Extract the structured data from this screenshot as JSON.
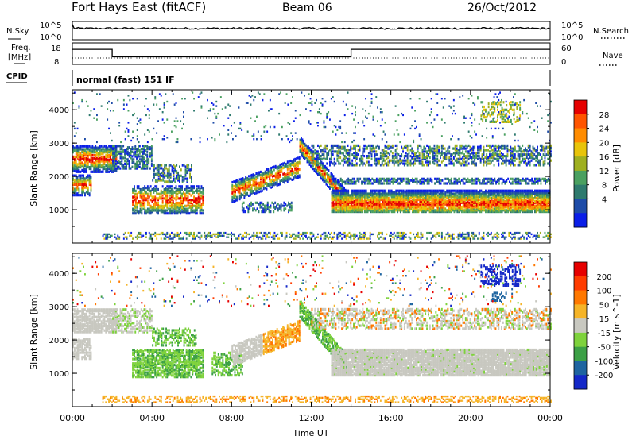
{
  "header": {
    "station": "Fort Hays East (fitACF)",
    "beam": "Beam 06",
    "date": "26/Oct/2012"
  },
  "panels": {
    "nsky_label": "N.Sky",
    "nsearch_label": "N.Search",
    "nsky_ticks": [
      "10^5",
      "10^0"
    ],
    "nsearch_ticks": [
      "10^5",
      "10^0"
    ],
    "freq_label_1": "Freq.",
    "freq_label_2": "[MHz]",
    "freq_ticks": [
      "18",
      "8"
    ],
    "nave_label": "Nave",
    "nave_ticks": [
      "60",
      "0"
    ],
    "cpid_label": "CPID",
    "cpid_text": "normal (fast) 151 IF"
  },
  "chart_data": [
    {
      "type": "line",
      "name": "N.Sky / N.Search",
      "ylim_log10": [
        0,
        5
      ],
      "series": [
        {
          "label": "N.Sky",
          "x_hours": [
            0,
            0.1,
            24
          ],
          "y_log10": [
            4.2,
            3.1,
            3.1
          ],
          "style": "solid"
        },
        {
          "label": "N.Search",
          "x_hours": [
            0,
            24
          ],
          "y_log10": [
            3.0,
            3.0
          ],
          "style": "dotted"
        }
      ]
    },
    {
      "type": "line",
      "name": "Freq / Nave",
      "series": [
        {
          "label": "Freq. [MHz]",
          "x_hours": [
            0,
            2,
            2,
            14,
            14,
            24
          ],
          "y": [
            15,
            15,
            11.5,
            11.5,
            15,
            15
          ],
          "style": "solid"
        },
        {
          "label": "Nave",
          "x_hours": [
            0,
            24
          ],
          "y": [
            0.5,
            0.5
          ],
          "style": "dotted"
        }
      ]
    },
    {
      "type": "heatmap",
      "name": "Power",
      "ylabel": "Slant Range [km]",
      "y_ticks": [
        "1000",
        "2000",
        "3000",
        "4000"
      ],
      "colorbar_label": "Power [dB]",
      "colorbar_ticks": [
        "28",
        "24",
        "20",
        "16",
        "12",
        "8",
        "4"
      ],
      "colors": [
        "#0a1ee8",
        "#1e4ca8",
        "#2e7a6e",
        "#4aa060",
        "#9fb020",
        "#e8c40a",
        "#ff8c00",
        "#ff5500",
        "#e60000"
      ]
    },
    {
      "type": "heatmap",
      "name": "Velocity",
      "ylabel": "Slant Range [km]",
      "y_ticks": [
        "1000",
        "2000",
        "3000",
        "4000"
      ],
      "colorbar_label": "Velocity [m s^-1]",
      "colorbar_ticks": [
        "200",
        "100",
        "50",
        "15",
        "-15",
        "-50",
        "-100",
        "-200"
      ],
      "colors": [
        "#1428c8",
        "#1e64a0",
        "#3ca046",
        "#7ed23c",
        "#c8c8c0",
        "#f5b428",
        "#ff7800",
        "#ff3c00",
        "#e60000"
      ]
    }
  ],
  "xaxis": {
    "title": "Time UT",
    "ticks": [
      "00:00",
      "04:00",
      "08:00",
      "12:00",
      "16:00",
      "20:00",
      "00:00"
    ]
  }
}
